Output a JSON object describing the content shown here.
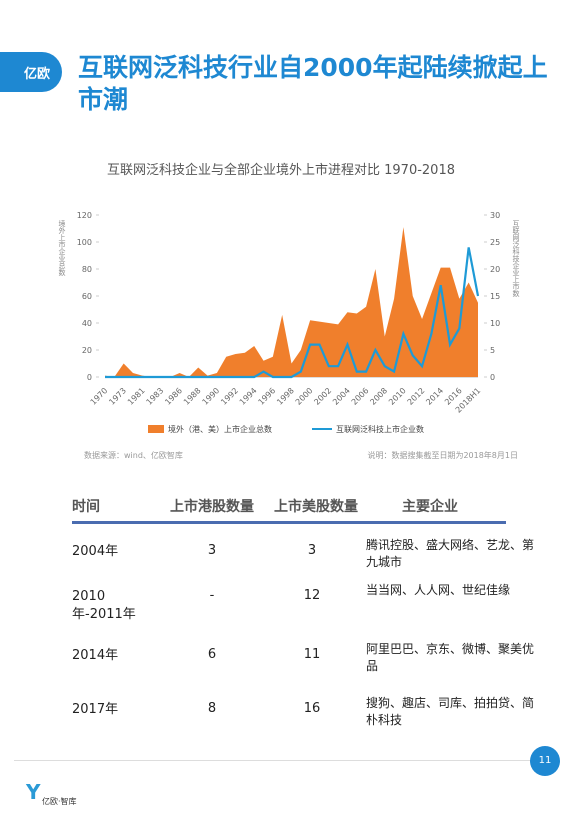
{
  "header": {
    "logo": "亿欧",
    "title": "互联网泛科技行业自2000年起陆续掀起上市潮"
  },
  "chart": {
    "type": "area-line",
    "title": "互联网泛科技企业与全部企业境外上市进程对比 1970-2018",
    "y_label": "境外上市企业总数",
    "y2_label": "互联网泛科技企业上市数",
    "categories": [
      "1970",
      null,
      "1973",
      null,
      "1981",
      null,
      "1983",
      null,
      "1986",
      null,
      "1988",
      null,
      "1990",
      null,
      "1992",
      null,
      "1994",
      null,
      "1996",
      null,
      "1998",
      null,
      "2000",
      null,
      "2002",
      null,
      "2004",
      null,
      "2006",
      null,
      "2008",
      null,
      "2010",
      null,
      "2012",
      null,
      "2014",
      null,
      "2016",
      null,
      "2018H1"
    ],
    "series": [
      {
        "name": "境外（港、美）上市企业总数",
        "color": "#f07f2c",
        "values": [
          1,
          0,
          10,
          3,
          1,
          0,
          0,
          0,
          3,
          0,
          7,
          1,
          3,
          15,
          17,
          18,
          23,
          12,
          15,
          46,
          10,
          20,
          42,
          41,
          40,
          39,
          48,
          47,
          52,
          80,
          30,
          58,
          111,
          60,
          43,
          62,
          81,
          81,
          58,
          70,
          55
        ]
      },
      {
        "name": "互联网泛科技上市企业数",
        "color": "#1e9ad6",
        "axis": "y2",
        "values": [
          0,
          0,
          0,
          0,
          0,
          0,
          0,
          0,
          0,
          0,
          0,
          0,
          0,
          0,
          0,
          0,
          0,
          1,
          0,
          0,
          0,
          1,
          6,
          6,
          2,
          2,
          6,
          1,
          1,
          5,
          2,
          1,
          8,
          4,
          2,
          8,
          17,
          6,
          9,
          24,
          15
        ]
      }
    ],
    "ylim": [
      0,
      120
    ],
    "yticks": [
      0,
      20,
      40,
      60,
      80,
      100,
      120
    ],
    "y2lim": [
      0,
      30
    ],
    "y2ticks": [
      0,
      5,
      10,
      15,
      20,
      25,
      30
    ],
    "source": "数据来源：wind、亿欧智库",
    "note": "说明：数据搜集截至日期为2018年8月1日"
  },
  "table": {
    "columns": [
      "时间",
      "上市港股数量",
      "上市美股数量",
      "主要企业"
    ],
    "rows": [
      [
        "2004年",
        "3",
        "3",
        "腾讯控股、盛大网络、艺龙、第九城市"
      ],
      [
        "2010年-2011年",
        "-",
        "12",
        "当当网、人人网、世纪佳缘"
      ],
      [
        "2014年",
        "6",
        "11",
        "阿里巴巴、京东、微博、聚美优品"
      ],
      [
        "2017年",
        "8",
        "16",
        "搜狗、趣店、司库、拍拍贷、简朴科技"
      ]
    ]
  },
  "footer": {
    "page": "11",
    "brand": "亿欧·智库"
  }
}
